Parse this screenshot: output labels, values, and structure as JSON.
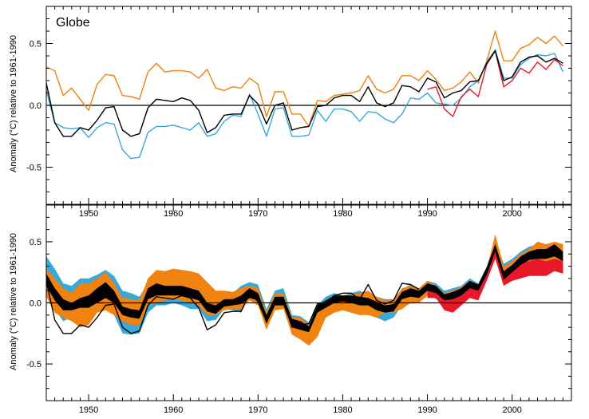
{
  "chart_data": [
    {
      "type": "line",
      "title": "Globe",
      "xlabel": "",
      "ylabel": "Anomaly (°C) relative to 1961-1990",
      "xlim": [
        1945,
        2007
      ],
      "ylim": [
        -0.8,
        0.8
      ],
      "xticks": [
        "1950",
        "1960",
        "1970",
        "1980",
        "1990",
        "2000"
      ],
      "yticks": [
        "-0.5",
        "0.0",
        "0.5"
      ],
      "zero_line": true,
      "colors": {
        "black": "#000000",
        "orange": "#f0820f",
        "blue": "#3aa8d8",
        "red": "#e8182a"
      },
      "series": [
        {
          "color": "#f0820f",
          "x": [
            1945,
            1946,
            1947,
            1948,
            1949,
            1950,
            1951,
            1952,
            1953,
            1954,
            1955,
            1956,
            1957,
            1958,
            1959,
            1960,
            1961,
            1962,
            1963,
            1964,
            1965,
            1966,
            1967,
            1968,
            1969,
            1970,
            1971,
            1972,
            1973,
            1974,
            1975,
            1976,
            1977,
            1978,
            1979,
            1980,
            1981,
            1982,
            1983,
            1984,
            1985,
            1986,
            1987,
            1988,
            1989,
            1990,
            1991,
            1992,
            1993,
            1994,
            1995,
            1996,
            1997,
            1998,
            1999,
            2000,
            2001,
            2002,
            2003,
            2004,
            2005,
            2006
          ],
          "y": [
            0.31,
            0.28,
            0.08,
            0.14,
            0.05,
            -0.04,
            0.17,
            0.25,
            0.24,
            0.08,
            0.07,
            0.05,
            0.27,
            0.34,
            0.27,
            0.28,
            0.28,
            0.27,
            0.22,
            0.29,
            0.14,
            0.12,
            0.15,
            0.14,
            0.22,
            0.17,
            -0.09,
            0.11,
            0.11,
            -0.07,
            -0.07,
            -0.17,
            0.04,
            0.03,
            0.08,
            0.09,
            0.1,
            0.12,
            0.24,
            0.13,
            0.1,
            0.13,
            0.24,
            0.24,
            0.2,
            0.28,
            0.21,
            0.12,
            0.14,
            0.19,
            0.27,
            0.18,
            0.36,
            0.6,
            0.36,
            0.36,
            0.46,
            0.49,
            0.55,
            0.5,
            0.56,
            0.48
          ]
        },
        {
          "color": "#3aa8d8",
          "x": [
            1945,
            1946,
            1947,
            1948,
            1949,
            1950,
            1951,
            1952,
            1953,
            1954,
            1955,
            1956,
            1957,
            1958,
            1959,
            1960,
            1961,
            1962,
            1963,
            1964,
            1965,
            1966,
            1967,
            1968,
            1969,
            1970,
            1971,
            1972,
            1973,
            1974,
            1975,
            1976,
            1977,
            1978,
            1979,
            1980,
            1981,
            1982,
            1983,
            1984,
            1985,
            1986,
            1987,
            1988,
            1989,
            1990,
            1991,
            1992,
            1993,
            1994,
            1995,
            1996,
            1997,
            1998,
            1999,
            2000,
            2001,
            2002,
            2003,
            2004,
            2005,
            2006
          ],
          "y": [
            0.12,
            -0.14,
            -0.18,
            -0.19,
            -0.18,
            -0.26,
            -0.18,
            -0.14,
            -0.15,
            -0.36,
            -0.43,
            -0.42,
            -0.22,
            -0.17,
            -0.17,
            -0.16,
            -0.18,
            -0.2,
            -0.14,
            -0.25,
            -0.23,
            -0.13,
            -0.08,
            -0.09,
            0.09,
            -0.07,
            -0.25,
            -0.03,
            -0.02,
            -0.25,
            -0.25,
            -0.24,
            -0.04,
            -0.13,
            -0.03,
            -0.03,
            -0.05,
            -0.13,
            -0.05,
            -0.06,
            -0.11,
            -0.14,
            -0.07,
            0.06,
            0.05,
            0.1,
            0.02,
            0.01,
            0.0,
            0.06,
            0.15,
            0.2,
            0.35,
            0.45,
            0.22,
            0.22,
            0.33,
            0.38,
            0.41,
            0.4,
            0.42,
            0.27
          ]
        },
        {
          "color": "#e8182a",
          "x": [
            1990,
            1991,
            1992,
            1993,
            1994,
            1995,
            1996,
            1997,
            1998,
            1999,
            2000,
            2001,
            2002,
            2003,
            2004,
            2005,
            2006
          ],
          "y": [
            0.13,
            0.15,
            -0.03,
            -0.09,
            0.07,
            0.13,
            0.07,
            0.33,
            0.44,
            0.15,
            0.2,
            0.3,
            0.26,
            0.35,
            0.29,
            0.37,
            0.32
          ]
        },
        {
          "color": "#000000",
          "x": [
            1945,
            1946,
            1947,
            1948,
            1949,
            1950,
            1951,
            1952,
            1953,
            1954,
            1955,
            1956,
            1957,
            1958,
            1959,
            1960,
            1961,
            1962,
            1963,
            1964,
            1965,
            1966,
            1967,
            1968,
            1969,
            1970,
            1971,
            1972,
            1973,
            1974,
            1975,
            1976,
            1977,
            1978,
            1979,
            1980,
            1981,
            1982,
            1983,
            1984,
            1985,
            1986,
            1987,
            1988,
            1989,
            1990,
            1991,
            1992,
            1993,
            1994,
            1995,
            1996,
            1997,
            1998,
            1999,
            2000,
            2001,
            2002,
            2003,
            2004,
            2005,
            2006
          ],
          "y": [
            0.18,
            -0.14,
            -0.25,
            -0.25,
            -0.18,
            -0.2,
            -0.12,
            -0.02,
            -0.01,
            -0.2,
            -0.25,
            -0.23,
            -0.02,
            0.05,
            0.04,
            0.03,
            0.06,
            0.04,
            -0.04,
            -0.22,
            -0.18,
            -0.08,
            -0.07,
            -0.07,
            0.08,
            0.01,
            -0.15,
            0.0,
            0.02,
            -0.2,
            -0.18,
            -0.17,
            -0.01,
            0.0,
            0.06,
            0.08,
            0.08,
            0.03,
            0.15,
            0.02,
            -0.01,
            0.02,
            0.16,
            0.15,
            0.11,
            0.22,
            0.19,
            0.06,
            0.1,
            0.12,
            0.19,
            0.2,
            0.34,
            0.44,
            0.2,
            0.23,
            0.35,
            0.39,
            0.4,
            0.35,
            0.38,
            0.34
          ]
        }
      ]
    },
    {
      "type": "area",
      "title": "",
      "xlabel": "",
      "ylabel": "Anomaly (°C) relative to 1961-1990",
      "xlim": [
        1945,
        2007
      ],
      "ylim": [
        -0.8,
        0.8
      ],
      "xticks": [
        "1950",
        "1960",
        "1970",
        "1980",
        "1990",
        "2000"
      ],
      "yticks": [
        "-0.5",
        "0.0",
        "0.5"
      ],
      "zero_line": true,
      "colors": {
        "black": "#000000",
        "orange": "#f0820f",
        "blue": "#3aa8d8",
        "red": "#e8182a"
      },
      "x": [
        1945,
        1946,
        1947,
        1948,
        1949,
        1950,
        1951,
        1952,
        1953,
        1954,
        1955,
        1956,
        1957,
        1958,
        1959,
        1960,
        1961,
        1962,
        1963,
        1964,
        1965,
        1966,
        1967,
        1968,
        1969,
        1970,
        1971,
        1972,
        1973,
        1974,
        1975,
        1976,
        1977,
        1978,
        1979,
        1980,
        1981,
        1982,
        1983,
        1984,
        1985,
        1986,
        1987,
        1988,
        1989,
        1990,
        1991,
        1992,
        1993,
        1994,
        1995,
        1996,
        1997,
        1998,
        1999,
        2000,
        2001,
        2002,
        2003,
        2004,
        2005,
        2006
      ],
      "bands": [
        {
          "color": "#3aa8d8",
          "upper": [
            0.38,
            0.28,
            0.16,
            0.14,
            0.2,
            0.2,
            0.23,
            0.27,
            0.22,
            0.1,
            0.08,
            0.05,
            0.16,
            0.26,
            0.22,
            0.21,
            0.2,
            0.19,
            0.16,
            0.08,
            0.06,
            0.1,
            0.08,
            0.14,
            0.17,
            0.15,
            -0.05,
            0.1,
            0.12,
            -0.1,
            -0.11,
            -0.16,
            -0.02,
            0.05,
            0.08,
            0.06,
            0.08,
            0.1,
            0.06,
            0.05,
            0.03,
            0.03,
            0.11,
            0.15,
            0.12,
            0.18,
            0.16,
            0.1,
            0.12,
            0.14,
            0.2,
            0.16,
            0.3,
            0.52,
            0.32,
            0.36,
            0.42,
            0.46,
            0.48,
            0.46,
            0.5,
            0.42
          ],
          "lower": [
            0.1,
            -0.05,
            -0.15,
            -0.12,
            -0.15,
            -0.15,
            -0.05,
            -0.05,
            -0.1,
            -0.25,
            -0.26,
            -0.25,
            -0.08,
            -0.02,
            -0.02,
            0.0,
            -0.02,
            -0.05,
            -0.05,
            -0.15,
            -0.14,
            -0.05,
            -0.06,
            -0.08,
            0.05,
            0.0,
            -0.2,
            -0.05,
            -0.03,
            -0.2,
            -0.22,
            -0.22,
            -0.1,
            -0.1,
            -0.02,
            -0.02,
            -0.02,
            -0.08,
            -0.06,
            -0.12,
            -0.15,
            -0.12,
            -0.02,
            0.03,
            0.02,
            0.07,
            0.03,
            0.0,
            0.0,
            0.02,
            0.1,
            0.08,
            0.22,
            0.4,
            0.18,
            0.2,
            0.26,
            0.3,
            0.32,
            0.28,
            0.28,
            0.24
          ]
        },
        {
          "color": "#f0820f",
          "upper": [
            0.28,
            0.2,
            0.12,
            0.08,
            0.16,
            0.16,
            0.2,
            0.25,
            0.16,
            0.04,
            0.03,
            0.02,
            0.2,
            0.27,
            0.26,
            0.28,
            0.27,
            0.26,
            0.24,
            0.17,
            0.1,
            0.1,
            0.09,
            0.12,
            0.14,
            0.12,
            -0.08,
            0.08,
            0.08,
            -0.12,
            -0.12,
            -0.18,
            -0.04,
            0.02,
            0.06,
            0.06,
            0.07,
            0.08,
            0.1,
            0.05,
            0.02,
            0.02,
            0.12,
            0.14,
            0.12,
            0.18,
            0.14,
            0.08,
            0.1,
            0.13,
            0.18,
            0.15,
            0.28,
            0.56,
            0.3,
            0.34,
            0.4,
            0.44,
            0.5,
            0.48,
            0.5,
            0.48
          ],
          "lower": [
            0.05,
            -0.08,
            -0.12,
            -0.15,
            -0.2,
            -0.18,
            -0.08,
            -0.06,
            -0.1,
            -0.15,
            -0.18,
            -0.18,
            -0.02,
            0.0,
            0.02,
            0.03,
            0.02,
            0.0,
            -0.02,
            -0.1,
            -0.1,
            -0.06,
            -0.05,
            -0.05,
            0.02,
            -0.02,
            -0.22,
            -0.06,
            -0.05,
            -0.26,
            -0.3,
            -0.35,
            -0.28,
            -0.12,
            -0.08,
            -0.06,
            -0.08,
            -0.1,
            -0.1,
            -0.12,
            -0.08,
            -0.08,
            -0.05,
            0.0,
            0.0,
            0.06,
            0.05,
            -0.02,
            0.0,
            -0.02,
            0.08,
            0.08,
            0.2,
            0.4,
            0.17,
            0.2,
            0.28,
            0.3,
            0.32,
            0.32,
            0.3,
            0.28
          ]
        },
        {
          "color": "#e8182a",
          "x": [
            1990,
            1991,
            1992,
            1993,
            1994,
            1995,
            1996,
            1997,
            1998,
            1999,
            2000,
            2001,
            2002,
            2003,
            2004,
            2005,
            2006
          ],
          "upper": [
            0.14,
            0.14,
            0.06,
            0.08,
            0.1,
            0.16,
            0.12,
            0.28,
            0.48,
            0.22,
            0.26,
            0.34,
            0.34,
            0.36,
            0.34,
            0.36,
            0.34
          ],
          "lower": [
            0.04,
            0.04,
            -0.06,
            -0.08,
            -0.02,
            0.04,
            0.02,
            0.18,
            0.36,
            0.14,
            0.18,
            0.2,
            0.22,
            0.22,
            0.22,
            0.26,
            0.24
          ]
        },
        {
          "color": "#000000",
          "upper": [
            0.24,
            0.12,
            0.03,
            0.0,
            0.04,
            0.06,
            0.12,
            0.17,
            0.1,
            -0.03,
            -0.05,
            -0.06,
            0.12,
            0.16,
            0.14,
            0.14,
            0.14,
            0.12,
            0.1,
            0.0,
            -0.02,
            0.03,
            0.03,
            0.06,
            0.12,
            0.08,
            -0.1,
            0.05,
            0.05,
            -0.13,
            -0.15,
            -0.19,
            -0.02,
            0.02,
            0.06,
            0.06,
            0.06,
            0.05,
            0.04,
            0.01,
            -0.02,
            -0.01,
            0.09,
            0.12,
            0.1,
            0.16,
            0.14,
            0.07,
            0.09,
            0.12,
            0.18,
            0.15,
            0.29,
            0.48,
            0.26,
            0.31,
            0.38,
            0.42,
            0.44,
            0.44,
            0.48,
            0.42
          ],
          "lower": [
            0.14,
            0.02,
            -0.06,
            -0.06,
            -0.04,
            -0.04,
            0.0,
            0.04,
            0.0,
            -0.1,
            -0.12,
            -0.13,
            0.03,
            0.06,
            0.06,
            0.06,
            0.06,
            0.04,
            0.02,
            -0.07,
            -0.09,
            -0.03,
            -0.02,
            -0.01,
            0.04,
            0.02,
            -0.17,
            -0.02,
            -0.02,
            -0.2,
            -0.22,
            -0.24,
            -0.08,
            -0.04,
            0.0,
            0.01,
            0.0,
            -0.02,
            -0.02,
            -0.06,
            -0.08,
            -0.07,
            0.03,
            0.05,
            0.04,
            0.1,
            0.08,
            0.02,
            0.03,
            0.06,
            0.12,
            0.1,
            0.23,
            0.42,
            0.19,
            0.25,
            0.31,
            0.35,
            0.36,
            0.36,
            0.38,
            0.34
          ]
        }
      ],
      "series": [
        {
          "color": "#000000",
          "x": [
            1945,
            1946,
            1947,
            1948,
            1949,
            1950,
            1951,
            1952,
            1953,
            1954,
            1955,
            1956,
            1957,
            1958,
            1959,
            1960,
            1961,
            1962,
            1963,
            1964,
            1965,
            1966,
            1967,
            1968,
            1969,
            1970,
            1971,
            1972,
            1973,
            1974,
            1975,
            1976,
            1977,
            1978,
            1979,
            1980,
            1981,
            1982,
            1983,
            1984,
            1985,
            1986,
            1987,
            1988,
            1989
          ],
          "y": [
            0.18,
            -0.14,
            -0.25,
            -0.25,
            -0.18,
            -0.2,
            -0.12,
            -0.02,
            -0.01,
            -0.2,
            -0.25,
            -0.23,
            -0.02,
            0.05,
            0.04,
            0.03,
            0.06,
            0.04,
            -0.04,
            -0.22,
            -0.18,
            -0.08,
            -0.07,
            -0.07,
            0.08,
            0.01,
            -0.15,
            0.0,
            0.02,
            -0.2,
            -0.18,
            -0.17,
            -0.01,
            0.0,
            0.06,
            0.08,
            0.08,
            0.03,
            0.15,
            0.02,
            -0.01,
            0.02,
            0.16,
            0.15,
            0.11
          ]
        }
      ]
    }
  ]
}
